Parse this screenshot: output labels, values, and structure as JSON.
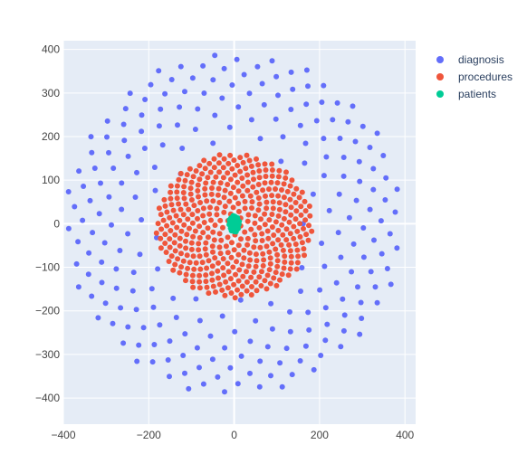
{
  "chart_data": {
    "type": "scatter",
    "title": "",
    "xlabel": "",
    "ylabel": "",
    "xlim": [
      -400,
      425
    ],
    "ylim": [
      -460,
      420
    ],
    "x_ticks": [
      -400,
      -200,
      0,
      200,
      400
    ],
    "y_ticks": [
      -400,
      -300,
      -200,
      -100,
      0,
      100,
      200,
      300,
      400
    ],
    "x_tick_labels": [
      "−400",
      "−200",
      "0",
      "200",
      "400"
    ],
    "y_tick_labels": [
      "−400",
      "−300",
      "−200",
      "−100",
      "0",
      "100",
      "200",
      "300",
      "400"
    ],
    "grid": true,
    "legend_position": "top-right",
    "plot_background": "#e5ecf6",
    "series": [
      {
        "name": "diagnosis",
        "color": "#636efa",
        "generator": "sunflower",
        "count": 230,
        "radius": 395,
        "center": [
          0,
          0
        ],
        "x_scale": 1.0,
        "y_scale": 1.0,
        "min_radius_fraction": 0.38
      },
      {
        "name": "procedures",
        "color": "#ef553b",
        "generator": "sunflower",
        "count": 420,
        "radius": 175,
        "center": [
          0,
          -5
        ],
        "x_scale": 1.05,
        "y_scale": 0.95,
        "min_radius_fraction": 0.05
      },
      {
        "name": "patients",
        "color": "#00cc96",
        "generator": "sunflower",
        "count": 45,
        "radius": 18,
        "center": [
          0,
          0
        ],
        "x_scale": 0.7,
        "y_scale": 1.1,
        "min_radius_fraction": 0.0
      }
    ]
  }
}
